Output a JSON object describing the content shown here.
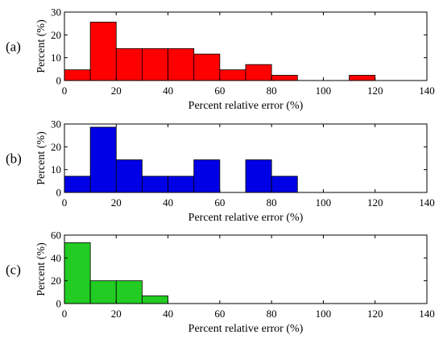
{
  "chart_data": [
    {
      "type": "bar",
      "panel_label": "(a)",
      "xlabel": "Percent relative error (%)",
      "ylabel": "Percent (%)",
      "xlim": [
        0,
        140
      ],
      "ylim": [
        0,
        30
      ],
      "xticks": [
        0,
        20,
        40,
        60,
        80,
        100,
        120,
        140
      ],
      "yticks": [
        0,
        10,
        20,
        30
      ],
      "bin_width": 10,
      "bins": [
        [
          0,
          10
        ],
        [
          10,
          20
        ],
        [
          20,
          30
        ],
        [
          30,
          40
        ],
        [
          40,
          50
        ],
        [
          50,
          60
        ],
        [
          60,
          70
        ],
        [
          70,
          80
        ],
        [
          80,
          90
        ],
        [
          90,
          100
        ],
        [
          100,
          110
        ],
        [
          110,
          120
        ],
        [
          120,
          130
        ],
        [
          130,
          140
        ]
      ],
      "values": [
        4.7,
        25.6,
        14.0,
        14.0,
        14.0,
        11.6,
        4.7,
        7.0,
        2.3,
        0,
        0,
        2.3,
        0,
        0
      ],
      "color": "#ff0000",
      "grid": false
    },
    {
      "type": "bar",
      "panel_label": "(b)",
      "xlabel": "Percent relative error (%)",
      "ylabel": "Percent (%)",
      "xlim": [
        0,
        140
      ],
      "ylim": [
        0,
        30
      ],
      "xticks": [
        0,
        20,
        40,
        60,
        80,
        100,
        120,
        140
      ],
      "yticks": [
        0,
        10,
        20,
        30
      ],
      "bin_width": 10,
      "bins": [
        [
          0,
          10
        ],
        [
          10,
          20
        ],
        [
          20,
          30
        ],
        [
          30,
          40
        ],
        [
          40,
          50
        ],
        [
          50,
          60
        ],
        [
          60,
          70
        ],
        [
          70,
          80
        ],
        [
          80,
          90
        ],
        [
          90,
          100
        ],
        [
          100,
          110
        ],
        [
          110,
          120
        ],
        [
          120,
          130
        ],
        [
          130,
          140
        ]
      ],
      "values": [
        7.1,
        28.6,
        14.3,
        7.1,
        7.1,
        14.3,
        0,
        14.3,
        7.1,
        0,
        0,
        0,
        0,
        0
      ],
      "color": "#0000e6",
      "grid": false
    },
    {
      "type": "bar",
      "panel_label": "(c)",
      "xlabel": "Percent relative error (%)",
      "ylabel": "Percent (%)",
      "xlim": [
        0,
        140
      ],
      "ylim": [
        0,
        60
      ],
      "xticks": [
        0,
        20,
        40,
        60,
        80,
        100,
        120,
        140
      ],
      "yticks": [
        0,
        20,
        40,
        60
      ],
      "bin_width": 10,
      "bins": [
        [
          0,
          10
        ],
        [
          10,
          20
        ],
        [
          20,
          30
        ],
        [
          30,
          40
        ],
        [
          40,
          50
        ],
        [
          50,
          60
        ],
        [
          60,
          70
        ],
        [
          70,
          80
        ],
        [
          80,
          90
        ],
        [
          90,
          100
        ],
        [
          100,
          110
        ],
        [
          110,
          120
        ],
        [
          120,
          130
        ],
        [
          130,
          140
        ]
      ],
      "values": [
        53.3,
        20.0,
        20.0,
        6.7,
        0,
        0,
        0,
        0,
        0,
        0,
        0,
        0,
        0,
        0
      ],
      "color": "#22cc22",
      "grid": false
    }
  ]
}
